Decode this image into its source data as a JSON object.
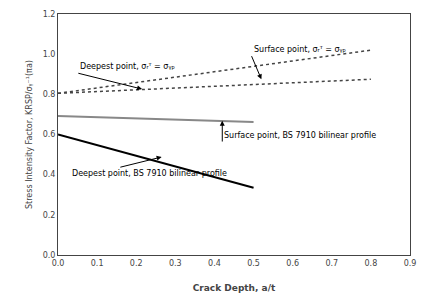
{
  "chart_data": {
    "type": "line",
    "xlabel": "Crack Depth, a/t",
    "ylabel": "Stress Intensity Factor, KRSP/σᵧ⁻¹(πa)",
    "xlim": [
      0,
      0.9
    ],
    "ylim": [
      0,
      1.2
    ],
    "xticks": [
      {
        "value": 0,
        "label": "0.0"
      },
      0.1,
      0.2,
      0.3,
      0.4,
      0.5,
      0.6,
      0.7,
      0.8,
      0.9
    ],
    "yticks": [
      {
        "value": 0,
        "label": "0.0"
      },
      0.2,
      0.4,
      0.6,
      0.8,
      {
        "value": 1.0,
        "label": "1.0"
      },
      1.2
    ],
    "grid": false,
    "series": [
      {
        "x": [
          0.0,
          0.8
        ],
        "values": [
          0.805,
          0.875
        ],
        "color": "#444444",
        "line_style": "dotted"
      },
      {
        "x": [
          0.0,
          0.8
        ],
        "values": [
          0.805,
          1.02
        ],
        "color": "#444444",
        "line_style": "dotted"
      },
      {
        "x": [
          0.0,
          0.5
        ],
        "values": [
          0.692,
          0.662
        ],
        "color": "#888888",
        "line_style": "solid"
      },
      {
        "x": [
          0.0,
          0.5
        ],
        "values": [
          0.6,
          0.335
        ],
        "color": "#000000",
        "line_style": "solid"
      }
    ],
    "annotations": [
      {
        "text": "Deepest point, σᵣᵀ = σᵧₚ",
        "xy": [
          0.215,
          0.826
        ],
        "xytext": [
          0.052,
          0.905
        ]
      },
      {
        "text": "Surface point, σᵣᵀ = σᵧₚ",
        "xy": [
          0.52,
          0.875
        ],
        "xytext": [
          0.495,
          0.99
        ]
      },
      {
        "text": "Surface point, BS 7910 bilinear profile",
        "xy": [
          0.42,
          0.668
        ],
        "xytext": [
          0.42,
          0.565
        ]
      },
      {
        "text": "Deepest point, BS 7910 bilinear profile",
        "xy": [
          0.265,
          0.488
        ],
        "xytext": [
          0.03,
          0.375
        ]
      }
    ]
  }
}
